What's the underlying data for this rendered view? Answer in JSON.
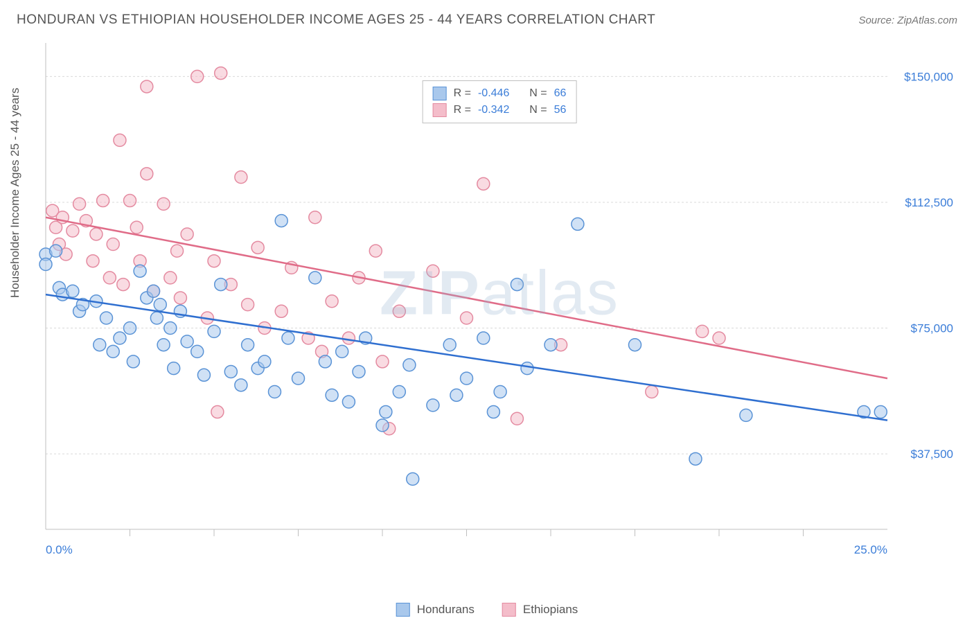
{
  "header": {
    "title": "HONDURAN VS ETHIOPIAN HOUSEHOLDER INCOME AGES 25 - 44 YEARS CORRELATION CHART",
    "source": "Source: ZipAtlas.com"
  },
  "chart": {
    "type": "scatter",
    "watermark_prefix": "ZIP",
    "watermark_suffix": "atlas",
    "y_axis_title": "Householder Income Ages 25 - 44 years",
    "xlim": [
      0,
      25
    ],
    "ylim": [
      15000,
      160000
    ],
    "x_ticks_label_left": "0.0%",
    "x_ticks_label_right": "25.0%",
    "x_minor_ticks": [
      2.5,
      5.0,
      7.5,
      10.0,
      12.5,
      15.0,
      17.5,
      20.0,
      22.5
    ],
    "y_grid": [
      37500,
      75000,
      112500,
      150000
    ],
    "y_tick_labels": [
      "$37,500",
      "$75,000",
      "$112,500",
      "$150,000"
    ],
    "grid_color": "#d9d9d9",
    "axis_color": "#bfbfbf",
    "tick_label_color": "#3b7dd8",
    "background_color": "#ffffff",
    "marker_radius": 9,
    "marker_opacity": 0.55,
    "line_width": 2.5,
    "series": [
      {
        "name": "Hondurans",
        "fill": "#a9c8ec",
        "stroke": "#5a93d6",
        "trend_stroke": "#2f6fd0",
        "R": "-0.446",
        "N": "66",
        "trend": {
          "x1": 0,
          "y1": 85000,
          "x2": 25,
          "y2": 47500
        },
        "points": [
          [
            0.0,
            97000
          ],
          [
            0.0,
            94000
          ],
          [
            0.3,
            98000
          ],
          [
            0.4,
            87000
          ],
          [
            0.5,
            85000
          ],
          [
            0.8,
            86000
          ],
          [
            1.0,
            80000
          ],
          [
            1.1,
            82000
          ],
          [
            1.5,
            83000
          ],
          [
            1.6,
            70000
          ],
          [
            1.8,
            78000
          ],
          [
            2.0,
            68000
          ],
          [
            2.2,
            72000
          ],
          [
            2.5,
            75000
          ],
          [
            2.6,
            65000
          ],
          [
            2.8,
            92000
          ],
          [
            3.0,
            84000
          ],
          [
            3.2,
            86000
          ],
          [
            3.3,
            78000
          ],
          [
            3.4,
            82000
          ],
          [
            3.5,
            70000
          ],
          [
            3.7,
            75000
          ],
          [
            3.8,
            63000
          ],
          [
            4.0,
            80000
          ],
          [
            4.2,
            71000
          ],
          [
            4.5,
            68000
          ],
          [
            4.7,
            61000
          ],
          [
            5.0,
            74000
          ],
          [
            5.2,
            88000
          ],
          [
            5.5,
            62000
          ],
          [
            5.8,
            58000
          ],
          [
            6.0,
            70000
          ],
          [
            6.3,
            63000
          ],
          [
            6.5,
            65000
          ],
          [
            6.8,
            56000
          ],
          [
            7.0,
            107000
          ],
          [
            7.2,
            72000
          ],
          [
            7.5,
            60000
          ],
          [
            8.0,
            90000
          ],
          [
            8.3,
            65000
          ],
          [
            8.5,
            55000
          ],
          [
            8.8,
            68000
          ],
          [
            9.0,
            53000
          ],
          [
            9.3,
            62000
          ],
          [
            9.5,
            72000
          ],
          [
            10.0,
            46000
          ],
          [
            10.1,
            50000
          ],
          [
            10.5,
            56000
          ],
          [
            10.8,
            64000
          ],
          [
            10.9,
            30000
          ],
          [
            11.5,
            52000
          ],
          [
            12.0,
            70000
          ],
          [
            12.2,
            55000
          ],
          [
            12.5,
            60000
          ],
          [
            13.0,
            72000
          ],
          [
            13.3,
            50000
          ],
          [
            13.5,
            56000
          ],
          [
            14.0,
            88000
          ],
          [
            14.3,
            63000
          ],
          [
            15.0,
            70000
          ],
          [
            15.8,
            106000
          ],
          [
            17.5,
            70000
          ],
          [
            19.3,
            36000
          ],
          [
            20.8,
            49000
          ],
          [
            24.3,
            50000
          ],
          [
            24.8,
            50000
          ]
        ]
      },
      {
        "name": "Ethiopians",
        "fill": "#f4bdca",
        "stroke": "#e48aa0",
        "trend_stroke": "#e06c88",
        "R": "-0.342",
        "N": "56",
        "trend": {
          "x1": 0,
          "y1": 108000,
          "x2": 25,
          "y2": 60000
        },
        "points": [
          [
            0.2,
            110000
          ],
          [
            0.3,
            105000
          ],
          [
            0.4,
            100000
          ],
          [
            0.5,
            108000
          ],
          [
            0.6,
            97000
          ],
          [
            0.8,
            104000
          ],
          [
            1.0,
            112000
          ],
          [
            1.2,
            107000
          ],
          [
            1.4,
            95000
          ],
          [
            1.5,
            103000
          ],
          [
            1.7,
            113000
          ],
          [
            1.9,
            90000
          ],
          [
            2.0,
            100000
          ],
          [
            2.2,
            131000
          ],
          [
            2.3,
            88000
          ],
          [
            2.5,
            113000
          ],
          [
            2.7,
            105000
          ],
          [
            2.8,
            95000
          ],
          [
            3.0,
            121000
          ],
          [
            3.2,
            86000
          ],
          [
            3.0,
            147000
          ],
          [
            3.5,
            112000
          ],
          [
            3.7,
            90000
          ],
          [
            3.9,
            98000
          ],
          [
            4.0,
            84000
          ],
          [
            4.2,
            103000
          ],
          [
            4.5,
            150000
          ],
          [
            5.2,
            151000
          ],
          [
            4.8,
            78000
          ],
          [
            5.0,
            95000
          ],
          [
            5.1,
            50000
          ],
          [
            5.5,
            88000
          ],
          [
            5.8,
            120000
          ],
          [
            6.0,
            82000
          ],
          [
            6.3,
            99000
          ],
          [
            6.5,
            75000
          ],
          [
            7.0,
            80000
          ],
          [
            7.3,
            93000
          ],
          [
            7.8,
            72000
          ],
          [
            8.0,
            108000
          ],
          [
            8.2,
            68000
          ],
          [
            8.5,
            83000
          ],
          [
            9.0,
            72000
          ],
          [
            9.3,
            90000
          ],
          [
            9.8,
            98000
          ],
          [
            10.0,
            65000
          ],
          [
            10.2,
            45000
          ],
          [
            10.5,
            80000
          ],
          [
            11.5,
            92000
          ],
          [
            12.5,
            78000
          ],
          [
            13.0,
            118000
          ],
          [
            14.0,
            48000
          ],
          [
            15.3,
            70000
          ],
          [
            18.0,
            56000
          ],
          [
            19.5,
            74000
          ],
          [
            20.0,
            72000
          ]
        ]
      }
    ],
    "stats_labels": {
      "r": "R =",
      "n": "N ="
    },
    "legend": [
      {
        "label": "Hondurans",
        "fill": "#a9c8ec",
        "stroke": "#5a93d6"
      },
      {
        "label": "Ethiopians",
        "fill": "#f4bdca",
        "stroke": "#e48aa0"
      }
    ]
  }
}
